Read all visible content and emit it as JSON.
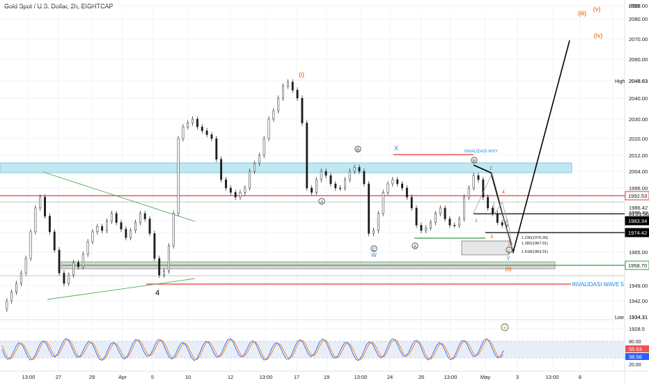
{
  "header": {
    "symbol_title": "Gold Spot / U.S. Dollar, 2h, EIGHTCAP",
    "currency": "USD"
  },
  "chart_data": {
    "type": "line",
    "title": "Gold Spot / U.S. Dollar, 2h, EIGHTCAP",
    "ylim": [
      1921,
      2087
    ],
    "x_tick_labels": [
      "13:00",
      "27",
      "29",
      "Apr",
      "5",
      "10",
      "12",
      "13:00",
      "17",
      "19",
      "13:00",
      "24",
      "26",
      "13:00",
      "May",
      "3",
      "13:00",
      "8"
    ],
    "y_tick_labels": [
      1928.5,
      1934.31,
      1942,
      1949,
      1958.7,
      1965,
      1974.42,
      1983.34,
      1986.42,
      1992.53,
      1996,
      2004,
      2012,
      2020,
      2030,
      2040,
      2048.63,
      2060,
      2070,
      2080,
      2090
    ],
    "price_tags": [
      {
        "label": "High",
        "value": "2048.63",
        "kind": "plain"
      },
      {
        "label": "",
        "value": "1992.53",
        "kind": "red"
      },
      {
        "label": "",
        "value": "1986.42",
        "kind": "plain"
      },
      {
        "label": "",
        "value": "01:21:36",
        "kind": "plain"
      },
      {
        "label": "",
        "value": "1983.34",
        "kind": "dark"
      },
      {
        "label": "",
        "value": "1974.42",
        "kind": "dark"
      },
      {
        "label": "",
        "value": "1958.70",
        "kind": "green"
      },
      {
        "label": "Low",
        "value": "1934.31",
        "kind": "plain"
      }
    ],
    "series": [
      {
        "values": [
          1938,
          1942,
          1946,
          1950,
          1955,
          1962,
          1975,
          1988,
          1992,
          1985,
          1975,
          1966,
          1955,
          1950,
          1954,
          1960,
          1958,
          1964,
          1970,
          1975,
          1979,
          1976,
          1983,
          1986,
          1982,
          1977,
          1972,
          1976,
          1982,
          1986,
          1984,
          1974,
          1962,
          1954,
          1956,
          1968,
          1986,
          2020,
          2026,
          2028,
          2030,
          2026,
          2024,
          2022,
          2020,
          2010,
          2000,
          1996,
          1994,
          1992,
          1994,
          1996,
          2004,
          2008,
          2012,
          2020,
          2030,
          2034,
          2040,
          2046,
          2048,
          2044,
          2040,
          2028,
          1996,
          1994,
          2000,
          2004,
          2002,
          1998,
          1996,
          1996,
          2000,
          2004,
          2006,
          2004,
          1998,
          1974,
          1976,
          1986,
          1994,
          1998,
          2000,
          1998,
          1996,
          1992,
          1988,
          1980,
          1976,
          1978,
          1982,
          1986,
          1988,
          1984,
          1980,
          1980,
          1984,
          1992,
          1996,
          2002,
          2000,
          1992,
          1988,
          1986,
          1982,
          1980,
          1983
        ]
      }
    ],
    "annotations": [
      "(i)",
      "(iii)",
      "(iv)",
      "(v)",
      "(ii)",
      "4",
      "INVALIDASI WXY",
      "X",
      "W",
      "Y",
      "A",
      "B",
      "C",
      "2",
      "4",
      "1",
      "3",
      "5",
      "INVALIDASI WAVE 5",
      "1.236(1970.39)",
      "1.382(1967.91)",
      "1.618(1963.91)"
    ],
    "levels": [
      {
        "name": "red-resistance",
        "value": 1992.53,
        "color": "#e53935"
      },
      {
        "name": "gray-line",
        "value": 1990,
        "color": "#b0b0b0"
      },
      {
        "name": "black-1983",
        "value": 1983.34,
        "color": "#000000"
      },
      {
        "name": "black-1974",
        "value": 1974.42,
        "color": "#000000"
      },
      {
        "name": "green-1958",
        "value": 1958.7,
        "color": "#2e9e3a"
      },
      {
        "name": "gray-1953",
        "value": 1953,
        "color": "#b0b0b0"
      },
      {
        "name": "invalid-wave5",
        "value": 1949,
        "color": "#e53935"
      }
    ],
    "oscillator": {
      "values": [
        55.53,
        38.56
      ],
      "labels": [
        "80.00",
        "20.00"
      ]
    }
  }
}
